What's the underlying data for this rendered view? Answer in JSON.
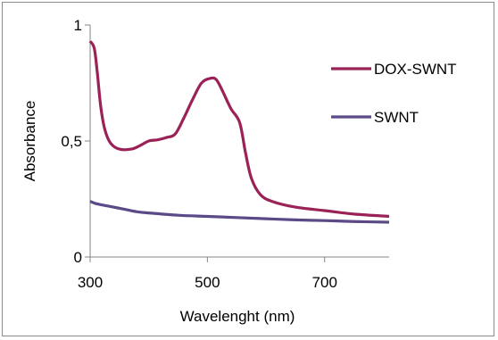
{
  "chart_data": {
    "type": "line",
    "xlabel": "Wavelenght (nm)",
    "ylabel": "Absorbance",
    "xlim": [
      300,
      810
    ],
    "ylim": [
      0,
      1
    ],
    "x_ticks": [
      300,
      500,
      700
    ],
    "x_tick_labels": [
      "300",
      "500",
      "700"
    ],
    "y_ticks": [
      0,
      0.5,
      1
    ],
    "y_tick_labels": [
      "0",
      "0,5",
      "1"
    ],
    "grid": false,
    "legend_position": "right",
    "series": [
      {
        "name": "DOX-SWNT",
        "color": "#9b2257",
        "x": [
          300,
          307,
          312,
          318,
          325,
          335,
          350,
          370,
          385,
          400,
          415,
          430,
          445,
          460,
          475,
          490,
          505,
          515,
          525,
          540,
          555,
          565,
          575,
          590,
          610,
          650,
          700,
          750,
          810
        ],
        "y": [
          0.93,
          0.9,
          0.8,
          0.65,
          0.55,
          0.49,
          0.465,
          0.465,
          0.48,
          0.5,
          0.505,
          0.515,
          0.53,
          0.6,
          0.68,
          0.75,
          0.77,
          0.765,
          0.72,
          0.64,
          0.58,
          0.45,
          0.34,
          0.27,
          0.24,
          0.215,
          0.2,
          0.185,
          0.175
        ]
      },
      {
        "name": "SWNT",
        "color": "#5b4a87",
        "x": [
          300,
          310,
          330,
          360,
          380,
          400,
          450,
          500,
          550,
          600,
          650,
          700,
          750,
          810
        ],
        "y": [
          0.24,
          0.23,
          0.22,
          0.205,
          0.195,
          0.19,
          0.18,
          0.175,
          0.17,
          0.165,
          0.16,
          0.157,
          0.153,
          0.15
        ]
      }
    ]
  }
}
